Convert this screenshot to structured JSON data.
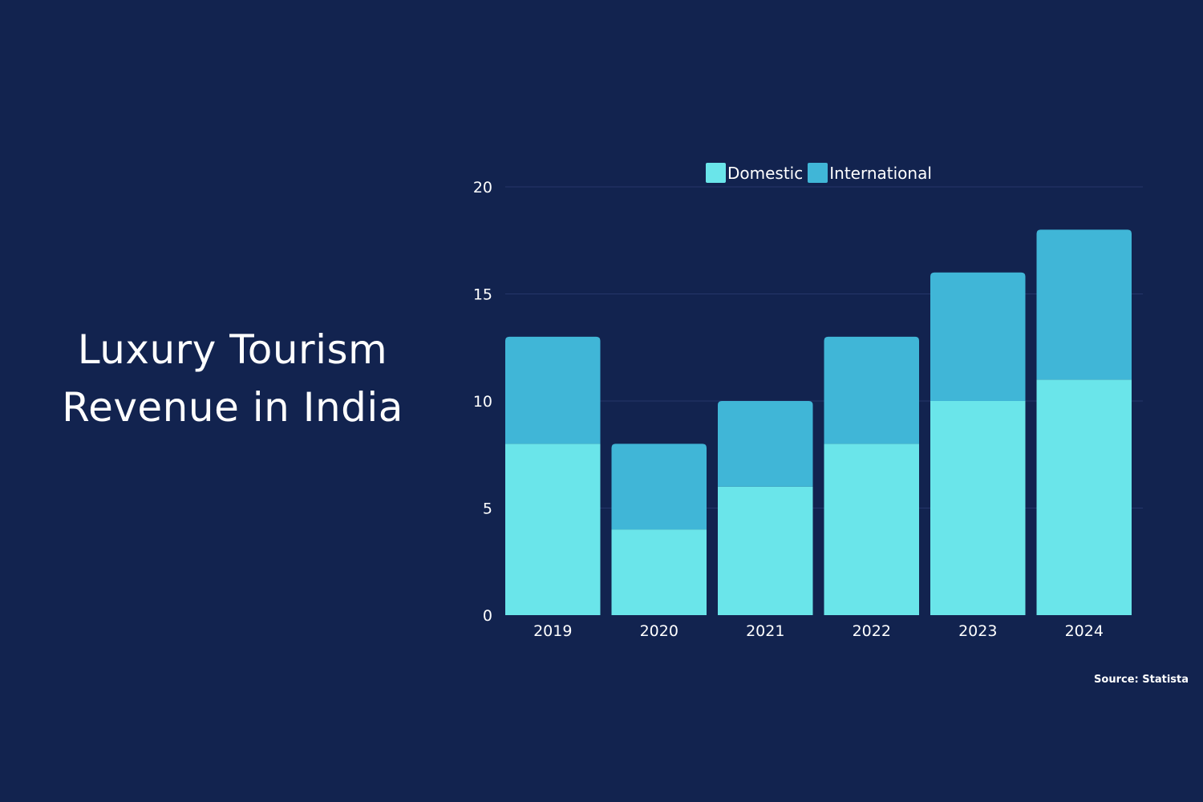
{
  "title": {
    "line1": "Luxury Tourism",
    "line2": "Revenue in India"
  },
  "source": "Source: Statista",
  "colors": {
    "background": "#12234f",
    "domestic": "#6ae5ea",
    "international": "#40b6d7",
    "grid": "#25366a",
    "text": "#ffffff"
  },
  "chart_data": {
    "type": "bar",
    "stacked": true,
    "categories": [
      "2019",
      "2020",
      "2021",
      "2022",
      "2023",
      "2024"
    ],
    "series": [
      {
        "name": "Domestic",
        "values": [
          8,
          4,
          6,
          8,
          10,
          11
        ]
      },
      {
        "name": "International",
        "values": [
          5,
          4,
          4,
          5,
          6,
          7
        ]
      }
    ],
    "ylim": [
      0,
      20
    ],
    "yticks": [
      0,
      5,
      10,
      15,
      20
    ],
    "grid": true,
    "legend_position": "top"
  }
}
